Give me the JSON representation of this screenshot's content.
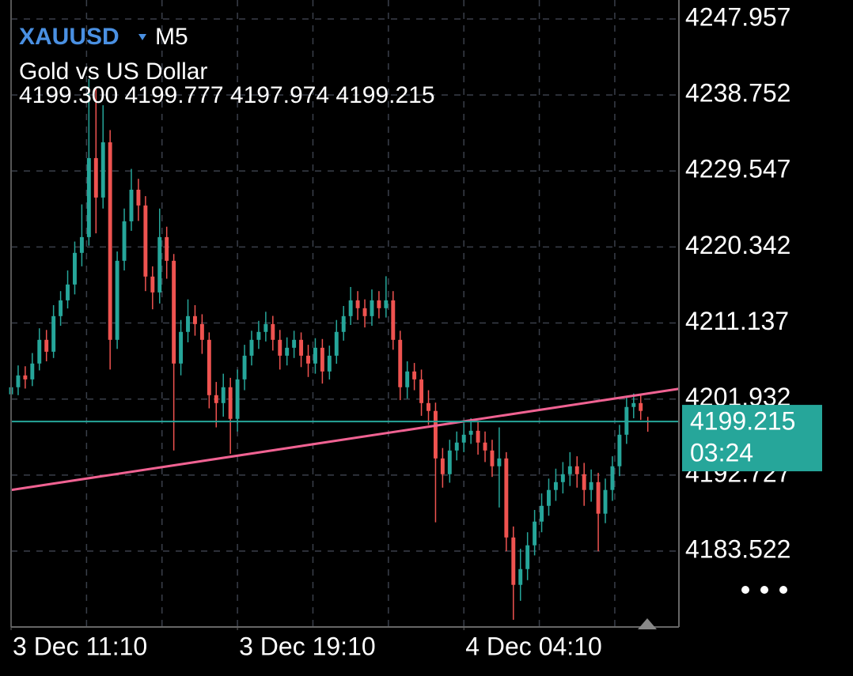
{
  "chart_data": {
    "type": "candlestick",
    "symbol": "XAUUSD",
    "timeframe": "M5",
    "description": "Gold vs US Dollar",
    "ohlc_text": "4199.300 4199.777 4197.974 4199.215",
    "up_color": "#26a69a",
    "down_color": "#ef5350",
    "open": [
      4202.5,
      4203.36,
      4204.79,
      4204.31,
      4206.23,
      4209.1,
      4207.66,
      4211.97,
      4213.88,
      4215.8,
      4219.63,
      4221.54,
      4231.11,
      4226.33,
      4233.02,
      4209.1,
      4218.67,
      4223.45,
      4227.28,
      4225.37,
      4216.76,
      4214.84,
      4221.54,
      4218.67,
      4206.23,
      4210.06,
      4211.97,
      4211.01,
      4209.1,
      4202.4,
      4201.44,
      4203.36,
      4199.53,
      4204.31,
      4207.18,
      4209.1,
      4210.06,
      4211.01,
      4209.1,
      4207.18,
      4208.14,
      4209.1,
      4207.18,
      4206.23,
      4208.14,
      4205.27,
      4207.18,
      4210.06,
      4211.97,
      4213.88,
      4212.93,
      4211.97,
      4213.88,
      4212.93,
      4213.88,
      4209.1,
      4203.36,
      4205.27,
      4204.31,
      4201.44,
      4200.49,
      4194.74,
      4192.83,
      4195.7,
      4196.66,
      4197.61,
      4198.09,
      4196.66,
      4195.7,
      4193.79,
      4194.74,
      4185.17,
      4179.43,
      4181.34,
      4184.22,
      4187.09,
      4189.0,
      4190.92,
      4191.87,
      4192.83,
      4193.79,
      4192.83,
      4190.92,
      4191.87,
      4188.05,
      4190.92,
      4193.79,
      4197.61,
      4200.97,
      4201.44,
      4199.3
    ],
    "high": [
      4204.6,
      4206.0,
      4205.9,
      4207.5,
      4210.5,
      4210.3,
      4213.3,
      4215.0,
      4217.5,
      4221.0,
      4225.5,
      4240.7,
      4239.6,
      4237.5,
      4234.5,
      4219.8,
      4225.0,
      4229.8,
      4228.6,
      4226.5,
      4218.0,
      4225.0,
      4222.8,
      4219.5,
      4211.5,
      4214.0,
      4213.3,
      4212.2,
      4210.0,
      4204.0,
      4205.0,
      4204.5,
      4205.5,
      4208.5,
      4210.2,
      4211.4,
      4212.5,
      4212.0,
      4210.3,
      4209.4,
      4210.2,
      4210.0,
      4208.5,
      4209.3,
      4209.2,
      4208.4,
      4211.5,
      4213.2,
      4215.5,
      4215.0,
      4214.0,
      4215.2,
      4215.0,
      4216.8,
      4215.0,
      4210.2,
      4206.5,
      4206.3,
      4205.5,
      4203.0,
      4201.5,
      4196.0,
      4197.0,
      4198.0,
      4199.0,
      4199.6,
      4199.3,
      4198.0,
      4197.0,
      4198.5,
      4195.5,
      4186.5,
      4183.8,
      4185.8,
      4188.5,
      4190.5,
      4192.3,
      4193.5,
      4194.3,
      4195.5,
      4195.0,
      4194.2,
      4193.4,
      4193.0,
      4192.3,
      4195.0,
      4198.8,
      4202.2,
      4202.6,
      4202.5,
      4199.777
    ],
    "low": [
      4201.3,
      4202.4,
      4203.2,
      4203.5,
      4205.4,
      4206.5,
      4206.9,
      4210.8,
      4212.9,
      4214.6,
      4218.0,
      4220.5,
      4222.0,
      4225.0,
      4205.5,
      4208.0,
      4217.5,
      4222.3,
      4223.5,
      4215.0,
      4212.8,
      4213.5,
      4216.5,
      4195.7,
      4204.8,
      4208.8,
      4209.6,
      4207.4,
      4200.8,
      4198.5,
      4199.8,
      4195.3,
      4198.0,
      4203.0,
      4206.0,
      4208.0,
      4208.9,
      4207.8,
      4205.5,
      4206.0,
      4206.9,
      4205.8,
      4204.6,
      4205.0,
      4203.8,
      4204.3,
      4206.2,
      4209.0,
      4210.9,
      4211.5,
      4210.6,
      4210.8,
      4211.7,
      4211.8,
      4207.9,
      4201.8,
      4202.0,
      4203.0,
      4199.9,
      4198.8,
      4187.0,
      4191.2,
      4191.8,
      4194.5,
      4195.5,
      4196.5,
      4195.2,
      4194.3,
      4192.5,
      4188.8,
      4183.5,
      4175.2,
      4177.5,
      4180.0,
      4183.0,
      4185.8,
      4187.8,
      4189.6,
      4190.5,
      4191.4,
      4191.2,
      4189.0,
      4189.5,
      4183.5,
      4186.9,
      4189.6,
      4192.6,
      4196.5,
      4199.6,
      4199.4,
      4197.974
    ],
    "close": [
      4203.36,
      4204.79,
      4204.31,
      4206.23,
      4209.1,
      4207.66,
      4211.97,
      4213.88,
      4215.8,
      4219.63,
      4221.54,
      4231.11,
      4226.33,
      4233.02,
      4209.1,
      4218.67,
      4223.45,
      4227.28,
      4225.37,
      4216.76,
      4214.84,
      4221.54,
      4218.67,
      4206.23,
      4210.06,
      4211.97,
      4211.01,
      4209.1,
      4202.4,
      4201.44,
      4203.36,
      4199.53,
      4204.31,
      4207.18,
      4209.1,
      4210.06,
      4211.01,
      4209.1,
      4207.18,
      4208.14,
      4209.1,
      4207.18,
      4206.23,
      4208.14,
      4205.27,
      4207.18,
      4210.06,
      4211.97,
      4213.88,
      4212.93,
      4211.97,
      4213.88,
      4212.93,
      4213.88,
      4209.1,
      4203.36,
      4205.27,
      4204.31,
      4201.44,
      4200.49,
      4194.74,
      4192.83,
      4195.7,
      4196.66,
      4197.61,
      4198.09,
      4196.66,
      4195.7,
      4193.79,
      4194.74,
      4185.17,
      4179.43,
      4181.34,
      4184.22,
      4187.09,
      4189.0,
      4190.92,
      4191.87,
      4192.83,
      4193.79,
      4192.83,
      4190.92,
      4191.87,
      4188.05,
      4190.92,
      4193.79,
      4197.61,
      4200.97,
      4201.44,
      4200.49,
      4199.215
    ],
    "xlim": [
      0,
      94.4
    ],
    "xticks": [
      {
        "value": 0,
        "label": "3 Dec 11:10"
      },
      {
        "value": 32,
        "label": "3 Dec 19:10"
      },
      {
        "value": 64,
        "label": "4 Dec 04:10"
      }
    ],
    "ylim": [
      4174.33,
      4250.25
    ],
    "yticks": [
      4247.957,
      4238.752,
      4229.547,
      4220.342,
      4211.137,
      4201.932,
      4192.727,
      4183.522
    ],
    "grid": true,
    "current_price": 4199.215,
    "current_color": "#26a69a",
    "countdown": "03:24",
    "trendline": {
      "color": "#f06292",
      "x": [
        0,
        94.4
      ],
      "y": [
        4190.92,
        4203.17
      ]
    }
  }
}
